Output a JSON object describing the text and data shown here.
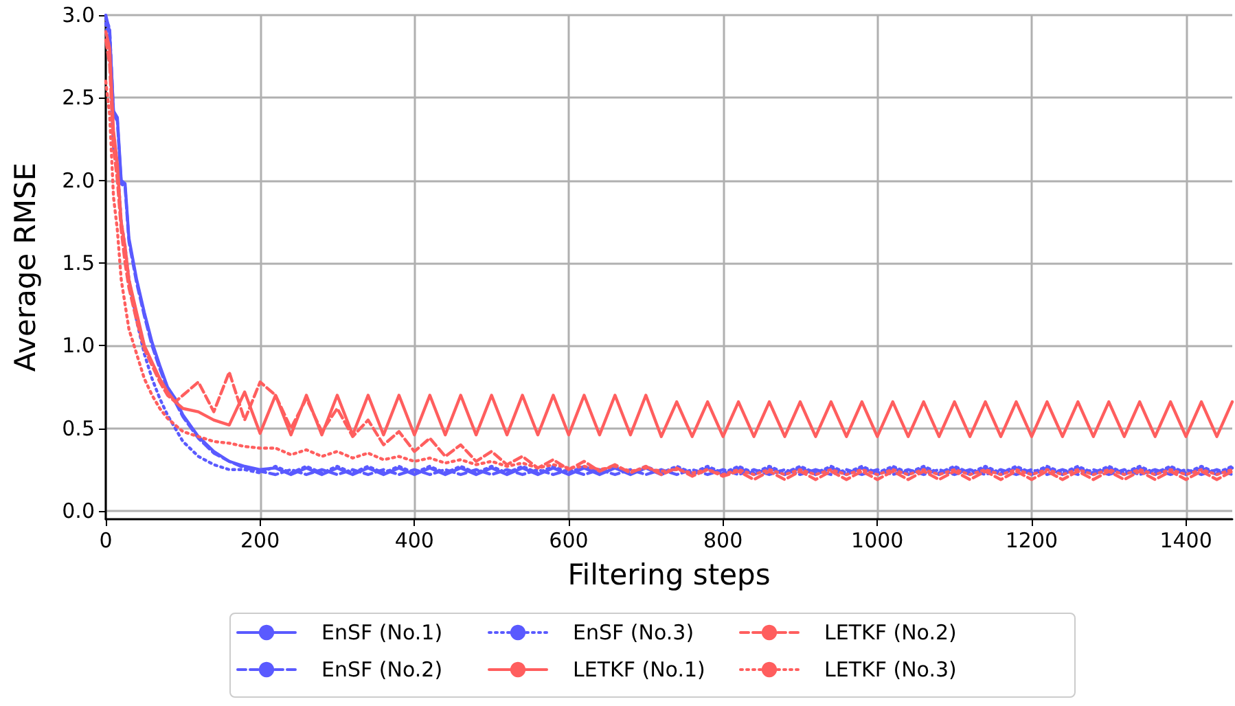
{
  "chart_data": {
    "type": "line",
    "xlabel": "Filtering steps",
    "ylabel": "Average RMSE",
    "x": [
      0,
      5,
      10,
      15,
      20,
      25,
      30,
      40,
      50,
      60,
      70,
      80,
      90,
      100,
      120,
      140,
      160,
      180,
      200,
      220,
      240,
      260,
      280,
      300,
      320,
      340,
      360,
      380,
      400,
      420,
      440,
      460,
      480,
      500,
      520,
      540,
      560,
      580,
      600,
      620,
      640,
      660,
      680,
      700,
      720,
      740,
      760,
      780,
      800,
      820,
      840,
      860,
      880,
      900,
      920,
      940,
      960,
      980,
      1000,
      1020,
      1040,
      1060,
      1080,
      1100,
      1120,
      1140,
      1160,
      1180,
      1200,
      1220,
      1240,
      1260,
      1280,
      1300,
      1320,
      1340,
      1360,
      1380,
      1400,
      1420,
      1440,
      1460
    ],
    "series": [
      {
        "name": "EnSF (No.1)",
        "color": "#5a5aff",
        "line_style": "solid",
        "values": [
          3.0,
          2.9,
          2.42,
          2.38,
          2.0,
          1.98,
          1.65,
          1.4,
          1.2,
          1.02,
          0.88,
          0.75,
          0.68,
          0.58,
          0.45,
          0.36,
          0.3,
          0.27,
          0.25,
          0.26,
          0.22,
          0.26,
          0.22,
          0.26,
          0.22,
          0.26,
          0.22,
          0.26,
          0.22,
          0.26,
          0.22,
          0.26,
          0.22,
          0.26,
          0.22,
          0.26,
          0.22,
          0.26,
          0.22,
          0.26,
          0.22,
          0.26,
          0.22,
          0.26,
          0.22,
          0.26,
          0.22,
          0.26,
          0.22,
          0.26,
          0.22,
          0.26,
          0.22,
          0.26,
          0.22,
          0.26,
          0.22,
          0.26,
          0.22,
          0.26,
          0.22,
          0.26,
          0.22,
          0.26,
          0.22,
          0.26,
          0.22,
          0.26,
          0.22,
          0.26,
          0.22,
          0.26,
          0.22,
          0.26,
          0.22,
          0.26,
          0.22,
          0.26,
          0.22,
          0.26,
          0.22,
          0.26
        ]
      },
      {
        "name": "EnSF (No.2)",
        "color": "#5a5aff",
        "line_style": "dashed",
        "values": [
          2.98,
          2.92,
          2.4,
          2.36,
          1.98,
          1.96,
          1.63,
          1.38,
          1.18,
          1.0,
          0.86,
          0.74,
          0.66,
          0.57,
          0.44,
          0.35,
          0.3,
          0.26,
          0.24,
          0.22,
          0.25,
          0.22,
          0.25,
          0.22,
          0.25,
          0.22,
          0.25,
          0.22,
          0.25,
          0.22,
          0.25,
          0.22,
          0.25,
          0.22,
          0.25,
          0.22,
          0.25,
          0.22,
          0.25,
          0.22,
          0.25,
          0.22,
          0.25,
          0.22,
          0.25,
          0.22,
          0.25,
          0.22,
          0.25,
          0.22,
          0.25,
          0.22,
          0.25,
          0.22,
          0.25,
          0.22,
          0.25,
          0.22,
          0.25,
          0.22,
          0.25,
          0.22,
          0.25,
          0.22,
          0.25,
          0.22,
          0.25,
          0.22,
          0.25,
          0.22,
          0.25,
          0.22,
          0.25,
          0.22,
          0.25,
          0.22,
          0.25,
          0.22,
          0.25,
          0.22,
          0.25,
          0.22
        ]
      },
      {
        "name": "EnSF (No.3)",
        "color": "#5a5aff",
        "line_style": "dotted",
        "values": [
          2.95,
          2.8,
          2.2,
          2.1,
          1.75,
          1.6,
          1.4,
          1.15,
          0.95,
          0.8,
          0.68,
          0.58,
          0.5,
          0.42,
          0.33,
          0.28,
          0.25,
          0.25,
          0.23,
          0.27,
          0.23,
          0.27,
          0.23,
          0.27,
          0.23,
          0.27,
          0.23,
          0.27,
          0.23,
          0.27,
          0.23,
          0.27,
          0.23,
          0.27,
          0.23,
          0.27,
          0.23,
          0.27,
          0.23,
          0.27,
          0.23,
          0.27,
          0.23,
          0.27,
          0.23,
          0.27,
          0.23,
          0.27,
          0.23,
          0.27,
          0.23,
          0.27,
          0.23,
          0.27,
          0.23,
          0.27,
          0.23,
          0.27,
          0.23,
          0.27,
          0.23,
          0.27,
          0.23,
          0.27,
          0.23,
          0.27,
          0.23,
          0.27,
          0.23,
          0.27,
          0.23,
          0.27,
          0.23,
          0.27,
          0.23,
          0.27,
          0.23,
          0.27,
          0.23,
          0.27,
          0.23,
          0.27
        ]
      },
      {
        "name": "LETKF (No.1)",
        "color": "#ff5e5e",
        "line_style": "solid",
        "values": [
          2.9,
          2.8,
          2.3,
          2.1,
          1.75,
          1.6,
          1.4,
          1.2,
          1.0,
          0.9,
          0.8,
          0.72,
          0.66,
          0.62,
          0.6,
          0.55,
          0.52,
          0.72,
          0.47,
          0.7,
          0.46,
          0.7,
          0.46,
          0.7,
          0.46,
          0.7,
          0.46,
          0.7,
          0.46,
          0.7,
          0.46,
          0.7,
          0.46,
          0.7,
          0.46,
          0.7,
          0.46,
          0.7,
          0.46,
          0.7,
          0.46,
          0.7,
          0.46,
          0.7,
          0.45,
          0.66,
          0.45,
          0.66,
          0.45,
          0.66,
          0.45,
          0.66,
          0.45,
          0.66,
          0.45,
          0.66,
          0.45,
          0.66,
          0.45,
          0.66,
          0.45,
          0.66,
          0.45,
          0.66,
          0.45,
          0.66,
          0.45,
          0.66,
          0.45,
          0.66,
          0.45,
          0.66,
          0.45,
          0.66,
          0.45,
          0.66,
          0.45,
          0.66,
          0.45,
          0.66,
          0.45,
          0.66
        ]
      },
      {
        "name": "LETKF (No.2)",
        "color": "#ff5e5e",
        "line_style": "dashed",
        "values": [
          2.85,
          2.7,
          2.2,
          2.0,
          1.7,
          1.5,
          1.35,
          1.15,
          0.98,
          0.88,
          0.78,
          0.7,
          0.66,
          0.7,
          0.78,
          0.6,
          0.84,
          0.55,
          0.78,
          0.7,
          0.5,
          0.68,
          0.48,
          0.62,
          0.45,
          0.55,
          0.4,
          0.48,
          0.36,
          0.44,
          0.33,
          0.4,
          0.3,
          0.36,
          0.28,
          0.33,
          0.26,
          0.31,
          0.25,
          0.3,
          0.24,
          0.28,
          0.23,
          0.27,
          0.22,
          0.26,
          0.21,
          0.25,
          0.21,
          0.24,
          0.19,
          0.24,
          0.19,
          0.24,
          0.19,
          0.24,
          0.19,
          0.24,
          0.19,
          0.24,
          0.19,
          0.24,
          0.19,
          0.24,
          0.19,
          0.24,
          0.19,
          0.24,
          0.19,
          0.24,
          0.19,
          0.24,
          0.19,
          0.24,
          0.19,
          0.24,
          0.19,
          0.24,
          0.19,
          0.24,
          0.19,
          0.24
        ]
      },
      {
        "name": "LETKF (No.3)",
        "color": "#ff5e5e",
        "line_style": "dotted",
        "values": [
          2.6,
          2.4,
          1.9,
          1.7,
          1.4,
          1.25,
          1.1,
          0.95,
          0.8,
          0.7,
          0.62,
          0.56,
          0.52,
          0.48,
          0.45,
          0.42,
          0.41,
          0.39,
          0.38,
          0.38,
          0.34,
          0.37,
          0.33,
          0.36,
          0.32,
          0.35,
          0.31,
          0.33,
          0.3,
          0.32,
          0.29,
          0.31,
          0.28,
          0.3,
          0.27,
          0.29,
          0.26,
          0.28,
          0.26,
          0.27,
          0.25,
          0.27,
          0.24,
          0.26,
          0.24,
          0.25,
          0.23,
          0.25,
          0.22,
          0.25,
          0.22,
          0.25,
          0.22,
          0.25,
          0.22,
          0.25,
          0.22,
          0.25,
          0.22,
          0.25,
          0.22,
          0.25,
          0.22,
          0.25,
          0.22,
          0.25,
          0.22,
          0.25,
          0.22,
          0.25,
          0.22,
          0.25,
          0.22,
          0.25,
          0.22,
          0.25,
          0.22,
          0.25,
          0.22,
          0.25,
          0.22,
          0.25
        ]
      }
    ],
    "xlim": [
      0,
      1460
    ],
    "xticks": [
      0,
      200,
      400,
      600,
      800,
      1000,
      1200,
      1400
    ],
    "ylim": [
      -0.05,
      3.0
    ],
    "yticks": [
      {
        "value": 0,
        "label": "0.0"
      },
      0.5,
      {
        "value": 1,
        "label": "1.0"
      },
      1.5,
      {
        "value": 2,
        "label": "2.0"
      },
      2.5,
      {
        "value": 3,
        "label": "3.0"
      }
    ],
    "grid": true,
    "legend": "bottom",
    "marker": "none"
  }
}
